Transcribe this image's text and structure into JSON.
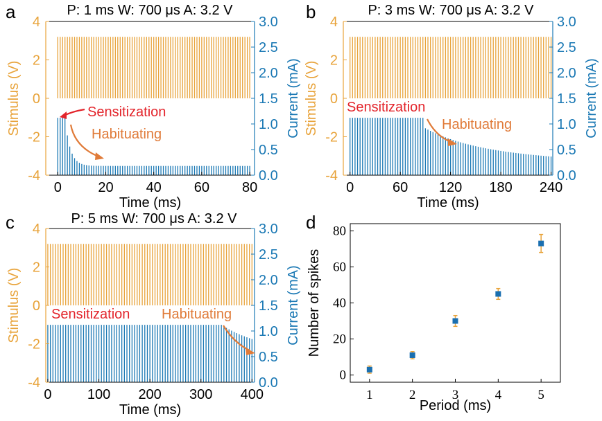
{
  "colors": {
    "stimulus": "#e8a33a",
    "current": "#1a78b4",
    "annot_red": "#e3242b",
    "annot_orange": "#e07b39",
    "marker": "#1a6fb0",
    "errbar": "#e8a33a",
    "axis": "#000000"
  },
  "chart_data": [
    {
      "id": "a",
      "type": "line",
      "panel_letter": "a",
      "title": "P: 1 ms W: 700 μs A: 3.2 V",
      "xlabel": "Time (ms)",
      "ylabel_left": "Stimulus (V)",
      "ylabel_right": "Current (mA)",
      "xlim": [
        -5,
        82
      ],
      "ylim_left": [
        -4,
        4
      ],
      "ylim_right": [
        0.0,
        3.0
      ],
      "xticks": [
        0,
        20,
        40,
        60,
        80
      ],
      "yticks_left": [
        4,
        2,
        0,
        -2,
        -4
      ],
      "yticks_right": [
        "3.0",
        "2.5",
        "2.0",
        "1.5",
        "1.0",
        "0.5",
        "0.0"
      ],
      "series": [
        {
          "kind": "stimulus",
          "period": 1,
          "amplitude": 3.2,
          "t_start": 0,
          "t_end": 80
        },
        {
          "kind": "current",
          "period": 1,
          "t_start": 0,
          "t_end": 80,
          "peak": 1.12,
          "steady": 0.18,
          "sensitization_pulses": 3,
          "decay_tau": 2.2
        }
      ],
      "annotations": [
        {
          "text": "Sensitization",
          "color": "annot_red"
        },
        {
          "text": "Habituating",
          "color": "annot_orange"
        }
      ]
    },
    {
      "id": "b",
      "type": "line",
      "panel_letter": "b",
      "title": "P: 3 ms W: 700 μs  A: 3.2 V",
      "xlabel": "Time (ms)",
      "ylabel_left": "Stimulus (V)",
      "ylabel_right": "Current (mA)",
      "xlim": [
        -8,
        242
      ],
      "ylim_left": [
        -4,
        4
      ],
      "ylim_right": [
        0.0,
        3.0
      ],
      "xticks": [
        0,
        60,
        120,
        180,
        240
      ],
      "yticks_left": [
        4,
        2,
        0,
        -2,
        -4
      ],
      "yticks_right": [
        "3.0",
        "2.5",
        "2.0",
        "1.5",
        "1.0",
        "0.5",
        "0.0"
      ],
      "series": [
        {
          "kind": "stimulus",
          "period": 3,
          "amplitude": 3.2,
          "t_start": 0,
          "t_end": 240
        },
        {
          "kind": "current",
          "period": 3,
          "t_start": 0,
          "t_end": 240,
          "peak": 1.12,
          "steady": 0.28,
          "sensitization_pulses": 30,
          "decay_tau": 55,
          "drop": 0.18
        }
      ],
      "annotations": [
        {
          "text": "Sensitization",
          "color": "annot_red"
        },
        {
          "text": "Habituating",
          "color": "annot_orange"
        }
      ]
    },
    {
      "id": "c",
      "type": "line",
      "panel_letter": "c",
      "title": "P: 5 ms W: 700 μs A: 3.2 V",
      "xlabel": "Time (ms)",
      "ylabel_left": "Stimulus (V)",
      "ylabel_right": "Current (mA)",
      "xlim": [
        -4,
        405
      ],
      "ylim_left": [
        -4,
        4
      ],
      "ylim_right": [
        0.0,
        3.0
      ],
      "xticks": [
        0,
        100,
        200,
        300,
        400
      ],
      "yticks_left": [
        4,
        2,
        0,
        -2,
        -4
      ],
      "yticks_right": [
        "3.0",
        "2.5",
        "2.0",
        "1.5",
        "1.0",
        "0.5",
        "0.0"
      ],
      "series": [
        {
          "kind": "stimulus",
          "period": 5,
          "amplitude": 3.2,
          "t_start": 0,
          "t_end": 400
        },
        {
          "kind": "current",
          "period": 5,
          "t_start": 0,
          "t_end": 400,
          "peak": 1.12,
          "steady": 0.55,
          "sensitization_pulses": 68,
          "decay_tau": 18,
          "drop": 0
        }
      ],
      "annotations": [
        {
          "text": "Sensitization",
          "color": "annot_red"
        },
        {
          "text": "Habituating",
          "color": "annot_orange"
        }
      ]
    },
    {
      "id": "d",
      "type": "scatter",
      "panel_letter": "d",
      "xlabel": "Period (ms)",
      "ylabel": "Number of spikes",
      "xlim": [
        0.55,
        5.45
      ],
      "ylim": [
        -4,
        84
      ],
      "xticks": [
        1,
        2,
        3,
        4,
        5
      ],
      "yticks": [
        0,
        20,
        40,
        60,
        80
      ],
      "points": [
        {
          "x": 1,
          "y": 3,
          "err": 2
        },
        {
          "x": 2,
          "y": 11,
          "err": 2
        },
        {
          "x": 3,
          "y": 30,
          "err": 3
        },
        {
          "x": 4,
          "y": 45,
          "err": 3
        },
        {
          "x": 5,
          "y": 73,
          "err": 5
        }
      ]
    }
  ]
}
